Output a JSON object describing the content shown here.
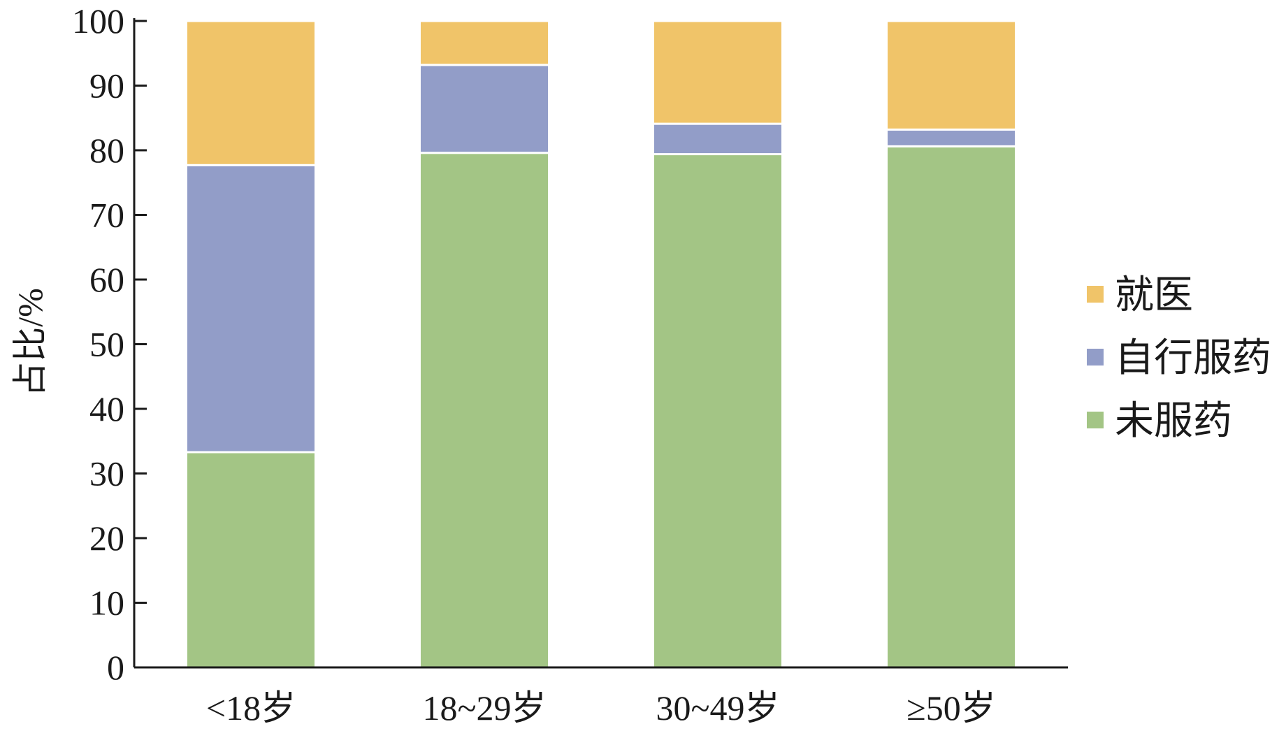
{
  "chart_data": {
    "type": "bar",
    "stacked": true,
    "title": "",
    "xlabel": "",
    "ylabel": "占比/%",
    "ylim": [
      0,
      100
    ],
    "yticks": [
      0,
      10,
      20,
      30,
      40,
      50,
      60,
      70,
      80,
      90,
      100
    ],
    "categories": [
      "<18岁",
      "18~29岁",
      "30~49岁",
      "≥50岁"
    ],
    "series": [
      {
        "name": "未服药",
        "color": "#a3c585",
        "values": [
          33.3,
          79.6,
          79.4,
          80.6
        ]
      },
      {
        "name": "自行服药",
        "color": "#929dc8",
        "values": [
          44.4,
          13.6,
          4.7,
          2.6
        ]
      },
      {
        "name": "就医",
        "color": "#f0c469",
        "values": [
          22.3,
          6.8,
          15.9,
          16.8
        ]
      }
    ],
    "legend": {
      "position": "right",
      "order": [
        "就医",
        "自行服药",
        "未服药"
      ]
    },
    "grid": false
  }
}
